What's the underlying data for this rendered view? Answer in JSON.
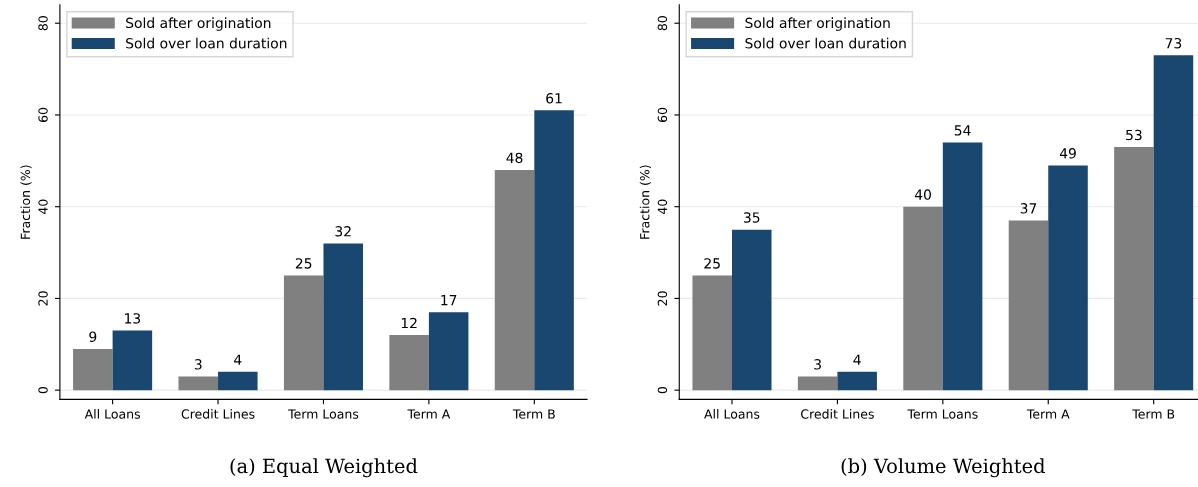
{
  "chart_data": [
    {
      "type": "bar",
      "ylabel": "Fraction (%)",
      "annotations": [
        "(a) Equal Weighted"
      ],
      "categories": [
        "All Loans",
        "Credit Lines",
        "Term Loans",
        "Term A",
        "Term B"
      ],
      "series": [
        {
          "name": "Sold after origination",
          "color": "#808080",
          "values": [
            9,
            3,
            25,
            12,
            48
          ]
        },
        {
          "name": "Sold over loan duration",
          "color": "#1a476f",
          "values": [
            13,
            4,
            32,
            17,
            61
          ]
        }
      ],
      "ylim": [
        -2,
        84
      ],
      "yticks": [
        0,
        20,
        40,
        60,
        80
      ],
      "grid": "y",
      "legend": "top left",
      "data_labels": true
    },
    {
      "type": "bar",
      "ylabel": "Fraction (%)",
      "annotations": [
        "(b) Volume Weighted"
      ],
      "categories": [
        "All Loans",
        "Credit Lines",
        "Term Loans",
        "Term A",
        "Term B"
      ],
      "series": [
        {
          "name": "Sold after origination",
          "color": "#808080",
          "values": [
            25,
            3,
            40,
            37,
            53
          ]
        },
        {
          "name": "Sold over loan duration",
          "color": "#1a476f",
          "values": [
            35,
            4,
            54,
            49,
            73
          ]
        }
      ],
      "ylim": [
        -2,
        84
      ],
      "yticks": [
        0,
        20,
        40,
        60,
        80
      ],
      "grid": "y",
      "legend": "top left",
      "data_labels": true
    }
  ]
}
